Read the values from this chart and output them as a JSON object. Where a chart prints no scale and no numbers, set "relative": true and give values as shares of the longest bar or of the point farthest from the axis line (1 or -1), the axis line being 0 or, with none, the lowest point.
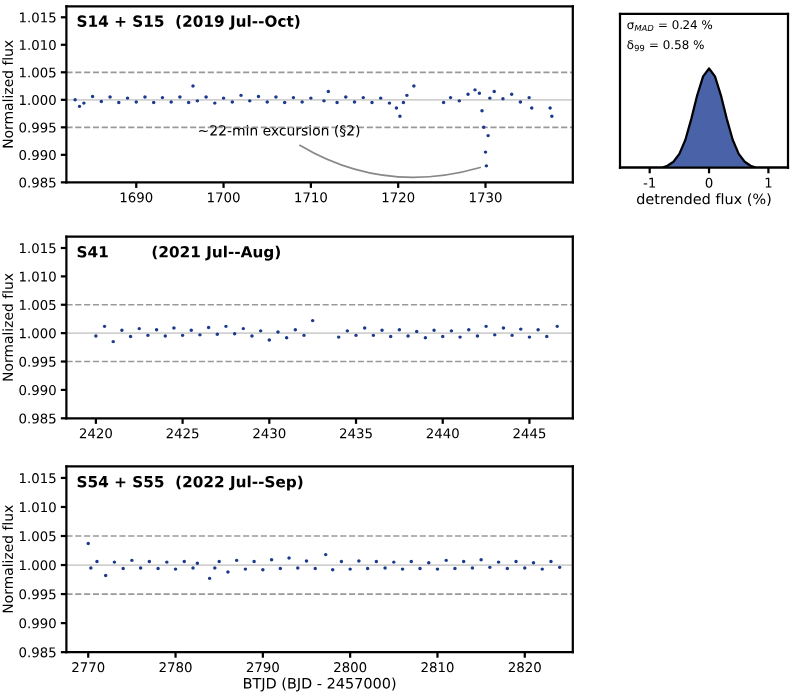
{
  "chart_data": [
    {
      "type": "scatter",
      "title": "S14 + S15  (2019 Jul--Oct)",
      "ylabel": "Normalized flux",
      "marker": "circle",
      "grid": false,
      "xlim": [
        1682,
        1740
      ],
      "xticks": [
        1690,
        1700,
        1710,
        1720,
        1730
      ],
      "ylim": [
        0.985,
        1.017
      ],
      "yticks": [
        0.985,
        {
          "value": 0.99,
          "label": "0.990"
        },
        0.995,
        {
          "value": 1.0,
          "label": "1.000"
        },
        1.005,
        {
          "value": 1.01,
          "label": "1.010"
        },
        1.015
      ],
      "tick_labels": "xy",
      "ref_lines": [
        {
          "axis": "y",
          "value": 1.005,
          "color": "#999999",
          "line_style": "dashed"
        },
        {
          "axis": "y",
          "value": 0.995,
          "color": "#999999",
          "line_style": "dashed"
        },
        {
          "axis": "y",
          "value": 1.0,
          "color": "#d0d0d0",
          "line_style": "solid"
        }
      ],
      "annotations": [
        {
          "text": "∼22-min excursion (§2)",
          "x": 1730,
          "y": 0.988
        }
      ],
      "series": [
        {
          "color": "#1c3a8c",
          "x": [
            1683,
            1683.5,
            1684,
            1685,
            1686,
            1687,
            1688,
            1689,
            1690,
            1691,
            1692,
            1693,
            1694,
            1695,
            1696,
            1696.5,
            1697,
            1698,
            1699,
            1700,
            1701,
            1702,
            1703,
            1704,
            1705,
            1706,
            1707,
            1708,
            1709,
            1710,
            1711.5,
            1712,
            1713,
            1714,
            1715,
            1716,
            1717,
            1718,
            1719,
            1719.8,
            1720.2,
            1720.6,
            1721,
            1721.8,
            1725.2,
            1726,
            1727,
            1728,
            1728.8,
            1729.3,
            1729.6,
            1729.8,
            1730,
            1730.1,
            1730.3,
            1730.5,
            1731,
            1732,
            1733,
            1734,
            1735,
            1735.3,
            1737.4,
            1737.6
          ],
          "values": [
            1.0,
            0.9988,
            0.9994,
            1.0006,
            0.9997,
            1.0005,
            0.9995,
            1.0003,
            0.9996,
            1.0005,
            0.9995,
            1.0004,
            0.9996,
            1.0005,
            0.9995,
            1.0025,
            0.9998,
            1.0005,
            0.9994,
            1.0003,
            0.9996,
            1.0008,
            0.9998,
            1.0006,
            0.9996,
            1.0005,
            0.9995,
            1.0004,
            0.9996,
            1.0003,
            0.9998,
            1.0015,
            0.9995,
            1.0005,
            0.9996,
            1.0004,
            0.9995,
            1.0003,
            0.9994,
            0.9985,
            0.997,
            0.9995,
            1.0008,
            1.0025,
            0.9995,
            1.0004,
            0.9998,
            1.001,
            1.0018,
            1.0012,
            0.998,
            0.995,
            0.9905,
            0.988,
            0.9935,
            1.0003,
            1.0015,
            1.0002,
            1.001,
            0.9996,
            1.0004,
            0.9985,
            0.9985,
            0.997
          ]
        }
      ]
    },
    {
      "type": "area",
      "relative": true,
      "xlabel": "detrended flux (%)",
      "grid": false,
      "xlim": [
        -1.5,
        1.33
      ],
      "xticks": [
        -1,
        0,
        1
      ],
      "tick_labels": "x",
      "annotations": [
        "σ$_{MAD}$ = 0.24 %",
        "δ$_{99}$ = 0.58 %"
      ],
      "series": [
        {
          "color": "#4a63a8",
          "x": [
            -1.5,
            -0.8,
            -0.7,
            -0.6,
            -0.5,
            -0.4,
            -0.3,
            -0.2,
            -0.1,
            0,
            0.1,
            0.2,
            0.3,
            0.4,
            0.5,
            0.6,
            0.7,
            0.8,
            1.33
          ],
          "values": [
            0,
            0,
            0.02,
            0.06,
            0.14,
            0.28,
            0.49,
            0.73,
            0.92,
            1.0,
            0.92,
            0.73,
            0.49,
            0.28,
            0.14,
            0.06,
            0.02,
            0,
            0
          ]
        }
      ]
    },
    {
      "type": "scatter",
      "title": "S41        (2021 Jul--Aug)",
      "ylabel": "Normalized flux",
      "marker": "circle",
      "grid": false,
      "xlim": [
        2418.3,
        2447.5
      ],
      "xticks": [
        2420,
        2425,
        2430,
        2435,
        2440,
        2445
      ],
      "ylim": [
        0.985,
        1.017
      ],
      "yticks": [
        0.985,
        {
          "value": 0.99,
          "label": "0.990"
        },
        0.995,
        {
          "value": 1.0,
          "label": "1.000"
        },
        1.005,
        {
          "value": 1.01,
          "label": "1.010"
        },
        1.015
      ],
      "ref_lines": [
        {
          "axis": "y",
          "value": 1.005,
          "color": "#999999",
          "line_style": "dashed"
        },
        {
          "axis": "y",
          "value": 0.995,
          "color": "#999999",
          "line_style": "dashed"
        },
        {
          "axis": "y",
          "value": 1.0,
          "color": "#d0d0d0",
          "line_style": "solid"
        }
      ],
      "series": [
        {
          "color": "#1c3a8c",
          "x": [
            2420,
            2420.5,
            2421,
            2421.5,
            2422,
            2422.5,
            2423,
            2423.5,
            2424,
            2424.5,
            2425,
            2425.5,
            2426,
            2426.5,
            2427,
            2427.5,
            2428,
            2428.5,
            2429,
            2429.5,
            2430,
            2430.5,
            2431,
            2431.5,
            2432,
            2432.5,
            2434,
            2434.5,
            2435,
            2435.5,
            2436,
            2436.5,
            2437,
            2437.5,
            2438,
            2438.5,
            2439,
            2439.5,
            2440,
            2440.5,
            2441,
            2441.5,
            2442,
            2442.5,
            2443,
            2443.5,
            2444,
            2444.5,
            2445,
            2445.5,
            2446,
            2446.6
          ],
          "values": [
            0.9995,
            1.0012,
            0.9985,
            1.0005,
            0.9994,
            1.0008,
            0.9996,
            1.0006,
            0.9995,
            1.0009,
            0.9996,
            1.0005,
            0.9997,
            1.001,
            0.9998,
            1.0012,
            0.9999,
            1.0008,
            0.9995,
            1.0004,
            0.9988,
            1.0002,
            0.9992,
            1.0006,
            0.9996,
            1.0022,
            0.9993,
            1.0004,
            0.9996,
            1.0009,
            0.9996,
            1.0005,
            0.9994,
            1.0006,
            0.9995,
            1.0003,
            0.9992,
            1.0005,
            0.9994,
            1.0004,
            0.9993,
            1.0006,
            0.9995,
            1.0012,
            0.9997,
            1.0009,
            0.9996,
            1.0007,
            0.9993,
            1.0006,
            0.9994,
            1.0012
          ]
        }
      ]
    },
    {
      "type": "scatter",
      "title": "S54 + S55  (2022 Jul--Sep)",
      "xlabel": "BTJD (BJD - 2457000)",
      "ylabel": "Normalized flux",
      "marker": "circle",
      "grid": false,
      "xlim": [
        2767.5,
        2825.5
      ],
      "xticks": [
        2770,
        2780,
        2790,
        2800,
        2810,
        2820
      ],
      "ylim": [
        0.985,
        1.017
      ],
      "yticks": [
        0.985,
        {
          "value": 0.99,
          "label": "0.990"
        },
        0.995,
        {
          "value": 1.0,
          "label": "1.000"
        },
        1.005,
        {
          "value": 1.01,
          "label": "1.010"
        },
        1.015
      ],
      "ref_lines": [
        {
          "axis": "y",
          "value": 1.005,
          "color": "#999999",
          "line_style": "dashed"
        },
        {
          "axis": "y",
          "value": 0.995,
          "color": "#999999",
          "line_style": "dashed"
        },
        {
          "axis": "y",
          "value": 1.0,
          "color": "#d0d0d0",
          "line_style": "solid"
        }
      ],
      "series": [
        {
          "color": "#1c3a8c",
          "x": [
            2770,
            2770.3,
            2771,
            2772,
            2773,
            2774,
            2775,
            2776,
            2777,
            2778,
            2779,
            2780,
            2781,
            2782,
            2782.5,
            2783.9,
            2784.5,
            2785,
            2786,
            2787,
            2788,
            2789,
            2790,
            2791,
            2792,
            2793,
            2794,
            2795,
            2796,
            2797.2,
            2798,
            2799,
            2800,
            2801,
            2802,
            2803,
            2804,
            2805,
            2806,
            2807,
            2808,
            2809,
            2810,
            2811,
            2812,
            2813,
            2814,
            2815,
            2816,
            2817,
            2818,
            2819,
            2820,
            2821,
            2822,
            2823,
            2824
          ],
          "values": [
            1.0037,
            0.9995,
            1.0006,
            0.9982,
            1.0005,
            0.9994,
            1.0008,
            0.9995,
            1.0006,
            0.9994,
            1.0005,
            0.9993,
            1.0006,
            0.9995,
            1.0003,
            0.9977,
            0.9995,
            1.0006,
            0.9988,
            1.0008,
            0.9993,
            1.0006,
            0.9992,
            1.0009,
            0.9994,
            1.0012,
            0.9995,
            1.0007,
            0.9994,
            1.0018,
            0.9992,
            1.0006,
            0.9993,
            1.0007,
            0.9994,
            1.0006,
            0.9995,
            1.0005,
            0.9993,
            1.0006,
            0.9994,
            1.0004,
            0.9993,
            1.0008,
            0.9994,
            1.0006,
            0.9995,
            1.0009,
            0.9996,
            1.0005,
            0.9994,
            1.0006,
            0.9995,
            1.0004,
            0.9993,
            1.0006,
            0.9996
          ]
        }
      ]
    }
  ]
}
